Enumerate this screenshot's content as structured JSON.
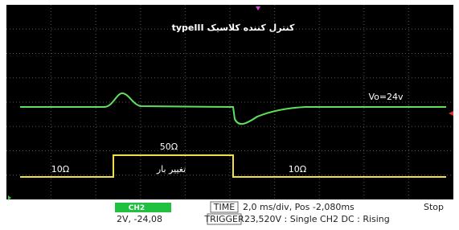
{
  "screen": {
    "title": "کنترل کننده کلاسیک typeIII",
    "labels": {
      "vo": "Vo=24v",
      "load_high": "50Ω",
      "load_low_left": "10Ω",
      "load_change": "تغییر بار",
      "load_low_right": "10Ω"
    }
  },
  "status_bar": {
    "channel": "CH2",
    "channel_scale": "2V, -24,08",
    "time_label": "TIME",
    "time_value": "2,0 ms/div, Pos -2,080ms",
    "trigger_label": "TRIGGER",
    "trigger_value": "23,520V : Single CH2 DC : Rising",
    "state": "Stop"
  }
}
